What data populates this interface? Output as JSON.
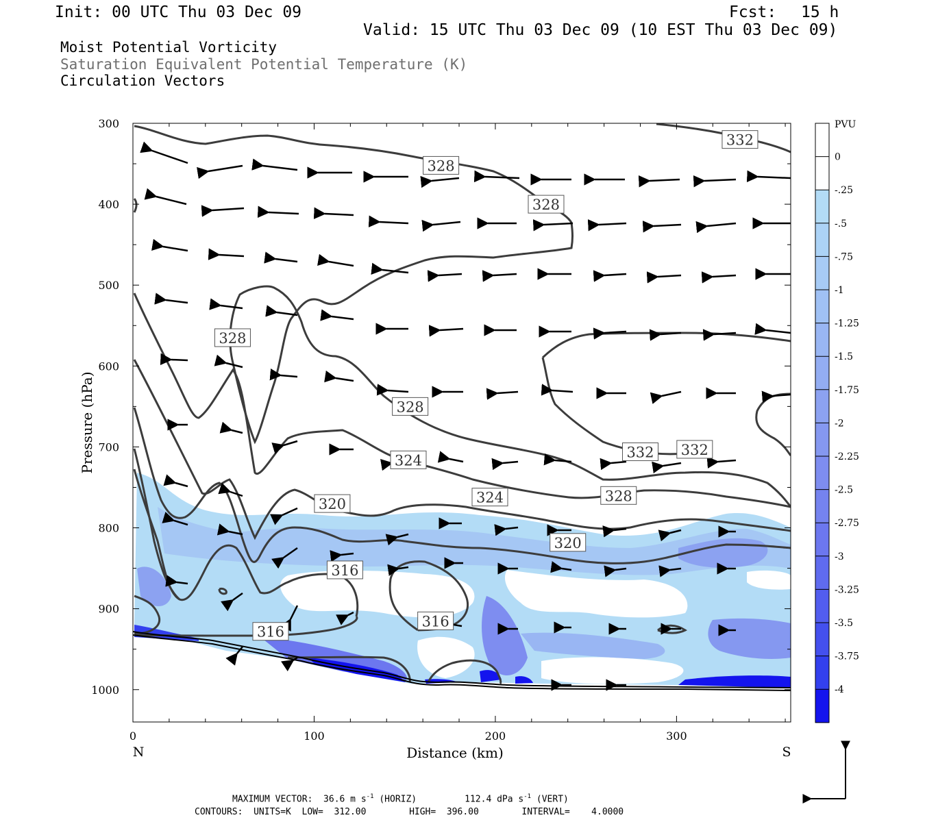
{
  "header": {
    "init": "Init: 00 UTC Thu 03 Dec 09",
    "fcst_label": "Fcst:",
    "fcst_value": "15 h",
    "valid": "Valid: 15 UTC Thu 03 Dec 09 (10 EST Thu 03 Dec 09)",
    "fields": [
      "Moist Potential Vorticity",
      "Saturation Equivalent Potential Temperature (K)",
      "Circulation Vectors"
    ]
  },
  "footer": {
    "line1_a": "MAXIMUM VECTOR:  36.6 m s",
    "line1_sup1": "-1",
    "line1_b": " (HORIZ)",
    "line1_c": "112.4 dPa s",
    "line1_sup2": "-1",
    "line1_d": " (VERT)",
    "line2": "CONTOURS:  UNITS=K  LOW=  312.00        HIGH=  396.00        INTERVAL=    4.0000"
  },
  "colors": {
    "contour": "#3c3c3c",
    "fill_light": "#b3dcf6",
    "fill_mid": "#99bff3",
    "fill_deep": "#6c7ef0",
    "fill_max": "#1414ee"
  },
  "chart_data": {
    "type": "cross-section",
    "xlabel": "Distance (km)",
    "ylabel": "Pressure (hPa)",
    "x_end_labels": [
      "N",
      "S"
    ],
    "xlim": [
      0,
      363
    ],
    "ylim": [
      1040,
      300
    ],
    "x_ticks": [
      0,
      100,
      200,
      300
    ],
    "y_ticks": [
      300,
      400,
      500,
      600,
      700,
      800,
      900,
      1000
    ],
    "colorbar": {
      "unit": "PVU",
      "levels": [
        "0",
        "-.25",
        "-.5",
        "-.75",
        "-1",
        "-1.25",
        "-1.5",
        "-1.75",
        "-2",
        "-2.25",
        "-2.5",
        "-2.75",
        "-3",
        "-3.25",
        "-3.5",
        "-3.75",
        "-4"
      ],
      "colors": [
        "#ffffff",
        "#ffffff",
        "#b3dcf6",
        "#acd3f6",
        "#a7cbf5",
        "#a0c1f4",
        "#99b6f3",
        "#93adf2",
        "#8ca2f1",
        "#8598f0",
        "#7e8df0",
        "#7583ef",
        "#6c77ef",
        "#5f6bef",
        "#525def",
        "#4450ee",
        "#3340ee",
        "#1414ee"
      ]
    },
    "contour_labels": [
      {
        "text": "332",
        "x": 335,
        "p": 320
      },
      {
        "text": "328",
        "x": 170,
        "p": 352
      },
      {
        "text": "328",
        "x": 228,
        "p": 400
      },
      {
        "text": "328",
        "x": 55,
        "p": 565
      },
      {
        "text": "328",
        "x": 153,
        "p": 650
      },
      {
        "text": "324",
        "x": 152,
        "p": 716
      },
      {
        "text": "324",
        "x": 197,
        "p": 762
      },
      {
        "text": "332",
        "x": 280,
        "p": 706
      },
      {
        "text": "332",
        "x": 310,
        "p": 703
      },
      {
        "text": "328",
        "x": 268,
        "p": 760
      },
      {
        "text": "320",
        "x": 110,
        "p": 770
      },
      {
        "text": "320",
        "x": 240,
        "p": 818
      },
      {
        "text": "316",
        "x": 117,
        "p": 852
      },
      {
        "text": "316",
        "x": 167,
        "p": 915
      },
      {
        "text": "316",
        "x": 76,
        "p": 928
      }
    ]
  }
}
